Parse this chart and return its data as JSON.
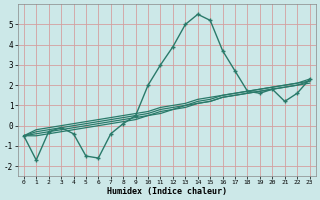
{
  "xlabel": "Humidex (Indice chaleur)",
  "bg_color": "#cce8e8",
  "grid_color": "#d4a0a0",
  "line_color": "#2a7a6a",
  "x_values": [
    0,
    1,
    2,
    3,
    4,
    5,
    6,
    7,
    8,
    9,
    10,
    11,
    12,
    13,
    14,
    15,
    16,
    17,
    18,
    19,
    20,
    21,
    22,
    23
  ],
  "main_series": [
    -0.5,
    -1.7,
    -0.3,
    -0.1,
    -0.4,
    -1.5,
    -1.6,
    -0.4,
    0.1,
    0.5,
    2.0,
    3.0,
    3.9,
    5.0,
    5.5,
    5.2,
    3.7,
    2.7,
    1.7,
    1.6,
    1.8,
    1.2,
    1.6,
    2.3
  ],
  "smooth_series": [
    [
      -0.5,
      -0.5,
      -0.4,
      -0.3,
      -0.2,
      -0.1,
      0.0,
      0.1,
      0.2,
      0.3,
      0.5,
      0.6,
      0.8,
      0.9,
      1.1,
      1.2,
      1.4,
      1.5,
      1.6,
      1.7,
      1.8,
      1.9,
      2.0,
      2.1
    ],
    [
      -0.5,
      -0.4,
      -0.3,
      -0.2,
      -0.1,
      0.0,
      0.1,
      0.2,
      0.3,
      0.4,
      0.5,
      0.7,
      0.8,
      1.0,
      1.1,
      1.2,
      1.4,
      1.5,
      1.6,
      1.7,
      1.8,
      1.9,
      2.0,
      2.2
    ],
    [
      -0.5,
      -0.3,
      -0.2,
      -0.1,
      0.0,
      0.1,
      0.2,
      0.3,
      0.4,
      0.5,
      0.6,
      0.8,
      0.9,
      1.0,
      1.2,
      1.3,
      1.5,
      1.6,
      1.7,
      1.8,
      1.9,
      2.0,
      2.1,
      2.2
    ],
    [
      -0.5,
      -0.2,
      -0.1,
      0.0,
      0.1,
      0.2,
      0.3,
      0.4,
      0.5,
      0.6,
      0.7,
      0.9,
      1.0,
      1.1,
      1.3,
      1.4,
      1.5,
      1.6,
      1.7,
      1.8,
      1.9,
      2.0,
      2.1,
      2.3
    ]
  ],
  "ylim": [
    -2.5,
    6.0
  ],
  "xlim": [
    -0.5,
    23.5
  ],
  "yticks": [
    -2,
    -1,
    0,
    1,
    2,
    3,
    4,
    5
  ],
  "xticks": [
    0,
    1,
    2,
    3,
    4,
    5,
    6,
    7,
    8,
    9,
    10,
    11,
    12,
    13,
    14,
    15,
    16,
    17,
    18,
    19,
    20,
    21,
    22,
    23
  ]
}
